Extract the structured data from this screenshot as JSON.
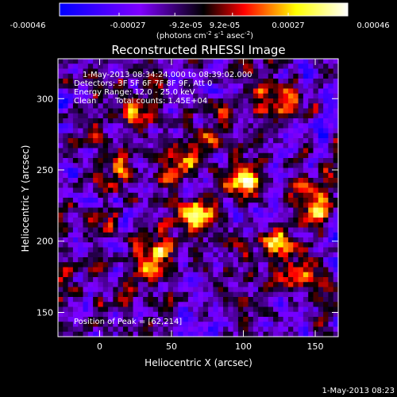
{
  "chart_data": {
    "type": "heatmap",
    "title": "Reconstructed RHESSI Image",
    "xlabel": "Heliocentric X (arcsec)",
    "ylabel": "Heliocentric Y (arcsec)",
    "xlim": [
      -29,
      166
    ],
    "ylim": [
      133,
      328
    ],
    "x_ticks": [
      {
        "value": 0,
        "label": "0"
      },
      {
        "value": 50,
        "label": "50"
      },
      {
        "value": 100,
        "label": "100"
      },
      {
        "value": 150,
        "label": "150"
      }
    ],
    "y_ticks": [
      {
        "value": 150,
        "label": "150"
      },
      {
        "value": 200,
        "label": "200"
      },
      {
        "value": 250,
        "label": "250"
      },
      {
        "value": 300,
        "label": "300"
      }
    ],
    "colorbar": {
      "range": [
        -0.00046,
        0.00046
      ],
      "tick_labels": [
        "-0.00046",
        "-0.00027",
        "-9.2e-05",
        "9.2e-05",
        "0.00027",
        "0.00046"
      ],
      "tick_values": [
        -0.00046,
        -0.00027,
        -9.2e-05,
        9.2e-05,
        0.00027,
        0.00046
      ],
      "units_label": "(photons cm-2 s-1 asec-2)",
      "colors": [
        "#0000ff",
        "#7f00ff",
        "#000000",
        "#ff0000",
        "#ffff00",
        "#ffffff"
      ]
    },
    "grid": "off",
    "sources": [
      {
        "x": 67,
        "y": 218,
        "intensity": 1.0
      },
      {
        "x": 102,
        "y": 243,
        "intensity": 0.95
      },
      {
        "x": 38,
        "y": 190,
        "intensity": 0.85
      },
      {
        "x": 122,
        "y": 200,
        "intensity": 0.75
      },
      {
        "x": 150,
        "y": 225,
        "intensity": 0.8
      },
      {
        "x": 57,
        "y": 255,
        "intensity": 0.7
      },
      {
        "x": 25,
        "y": 290,
        "intensity": 0.65
      },
      {
        "x": 120,
        "y": 300,
        "intensity": 0.6
      },
      {
        "x": 10,
        "y": 250,
        "intensity": 0.55
      },
      {
        "x": 140,
        "y": 175,
        "intensity": 0.45
      },
      {
        "x": 85,
        "y": 275,
        "intensity": 0.55
      }
    ],
    "annotations": {
      "time_range": "1-May-2013 08:34:24.000 to 08:39:02.000",
      "detectors": "Detectors: 3F 5F 6F 7F 8F 9F, Att 0",
      "energy": "Energy Range: 12.0 - 25.0 keV",
      "clean_label": "Clean",
      "total_counts": "Total counts: 1.45E+04",
      "peak": "Position of Peak = [62,214]"
    },
    "timestamp": "1-May-2013 08:23"
  }
}
